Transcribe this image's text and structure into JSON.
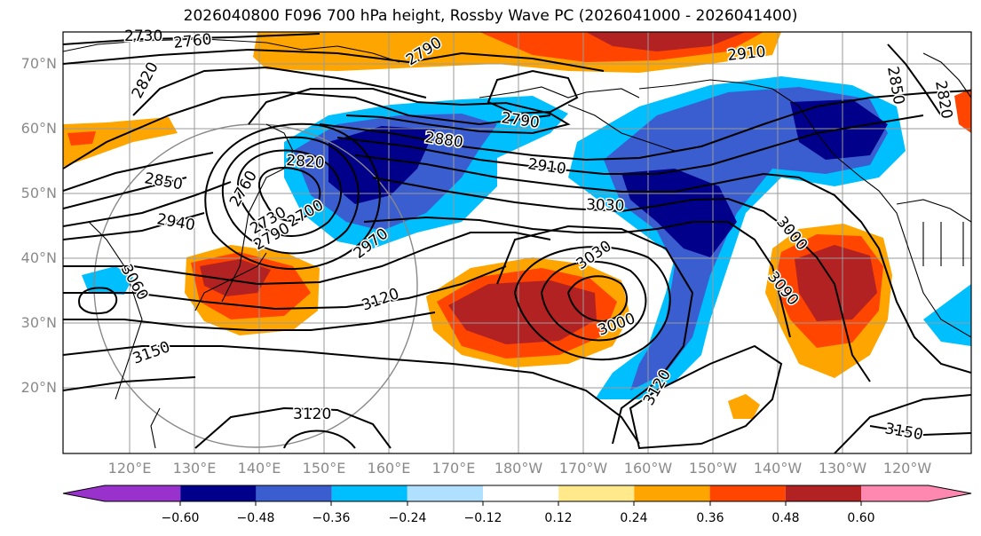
{
  "title": "2026040800 F096 700 hPa height, Rossby Wave PC (2026041000 - 2026041400)",
  "lat_labels": [
    "70°N",
    "60°N",
    "50°N",
    "40°N",
    "30°N",
    "20°N"
  ],
  "lon_labels": [
    "120°E",
    "130°E",
    "140°E",
    "150°E",
    "160°E",
    "170°E",
    "180°W",
    "170°W",
    "160°W",
    "150°W",
    "140°W",
    "130°W",
    "120°W"
  ],
  "colorbar": {
    "ticks": [
      "−0.60",
      "−0.48",
      "−0.36",
      "−0.24",
      "−0.12",
      "0.12",
      "0.24",
      "0.36",
      "0.48",
      "0.60"
    ],
    "colors": [
      "#9932cc",
      "#00008b",
      "#3a5ecf",
      "#00bfff",
      "#b0e0ff",
      "#ffffff",
      "#ffe98a",
      "#ffa500",
      "#ff4500",
      "#b22222",
      "#ff88b0"
    ]
  },
  "contour_labels": [
    {
      "text": "2730"
    },
    {
      "text": "2760"
    },
    {
      "text": "2820"
    },
    {
      "text": "2790"
    },
    {
      "text": "2910"
    },
    {
      "text": "2790"
    },
    {
      "text": "2880"
    },
    {
      "text": "2910"
    },
    {
      "text": "2820"
    },
    {
      "text": "2850"
    },
    {
      "text": "2760"
    },
    {
      "text": "2940"
    },
    {
      "text": "2730"
    },
    {
      "text": "2700"
    },
    {
      "text": "2790"
    },
    {
      "text": "2970"
    },
    {
      "text": "3030"
    },
    {
      "text": "3030"
    },
    {
      "text": "3000"
    },
    {
      "text": "3000"
    },
    {
      "text": "3090"
    },
    {
      "text": "3120"
    },
    {
      "text": "3060"
    },
    {
      "text": "3150"
    },
    {
      "text": "3120"
    },
    {
      "text": "3120"
    },
    {
      "text": "3150"
    },
    {
      "text": "2850"
    },
    {
      "text": "2820"
    }
  ]
}
